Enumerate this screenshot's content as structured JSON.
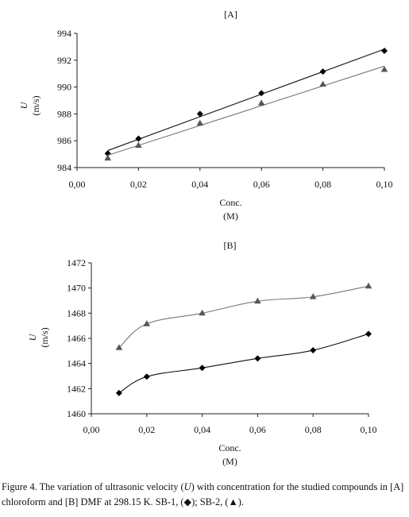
{
  "chart_data": [
    {
      "type": "line",
      "panel_label": "[A]",
      "x": [
        0.01,
        0.02,
        0.04,
        0.06,
        0.08,
        0.1
      ],
      "xlabel": "Conc.",
      "xunit": "(M)",
      "ylabel": "U",
      "yunit": "(m/s)",
      "xlim": [
        0.0,
        0.1
      ],
      "ylim": [
        984,
        994
      ],
      "x_ticks": [
        "0,00",
        "0,02",
        "0,04",
        "0,06",
        "0,08",
        "0,10"
      ],
      "y_ticks": [
        "984",
        "986",
        "988",
        "990",
        "992",
        "994"
      ],
      "grid": false,
      "fit": "linear",
      "series": [
        {
          "values": [
            985.05,
            986.15,
            988.0,
            989.55,
            991.15,
            992.7
          ],
          "marker": "diamond",
          "color": "#000000"
        },
        {
          "values": [
            984.7,
            985.65,
            987.3,
            988.8,
            990.2,
            991.3
          ],
          "marker": "triangle",
          "color": "#555555"
        }
      ]
    },
    {
      "type": "line",
      "panel_label": "[B]",
      "x": [
        0.01,
        0.02,
        0.04,
        0.06,
        0.08,
        0.1
      ],
      "xlabel": "Conc.",
      "xunit": "(M)",
      "ylabel": "U",
      "yunit": "(m/s)",
      "xlim": [
        0.0,
        0.1
      ],
      "ylim": [
        1460,
        1472
      ],
      "x_ticks": [
        "0,00",
        "0,02",
        "0,04",
        "0,06",
        "0,08",
        "0,10"
      ],
      "y_ticks": [
        "1460",
        "1462",
        "1464",
        "1466",
        "1468",
        "1470",
        "1472"
      ],
      "grid": false,
      "fit": "smooth",
      "series": [
        {
          "values": [
            1461.65,
            1462.95,
            1463.65,
            1464.4,
            1465.05,
            1466.35
          ],
          "marker": "diamond",
          "color": "#000000"
        },
        {
          "values": [
            1465.25,
            1467.15,
            1468.0,
            1468.95,
            1469.3,
            1470.15
          ],
          "marker": "triangle",
          "color": "#555555"
        }
      ]
    }
  ],
  "caption": {
    "part1": "Figure 4. The variation of ultrasonic velocity (",
    "symbol": "U",
    "part2": ") with concentration for the studied compounds in [A] chloroform and [B] DMF at 298.15 K. SB-1, (◆); SB-2, (▲)."
  }
}
